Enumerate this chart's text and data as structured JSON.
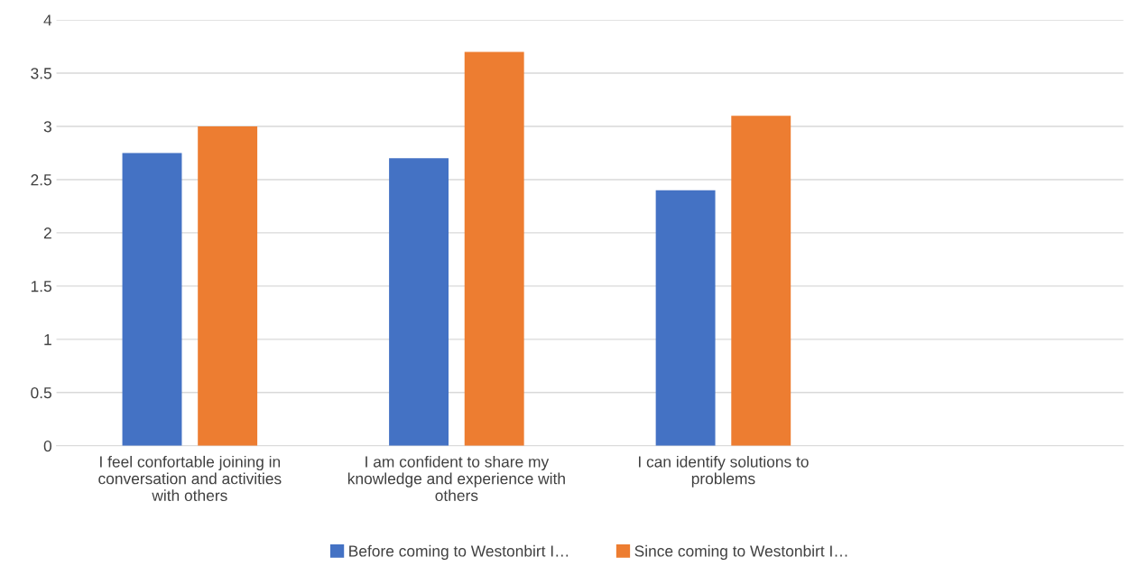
{
  "chart_data": {
    "type": "bar",
    "categories": [
      "I feel confortable joining in conversation and activities with others",
      "I am confident to share my knowledge and experience with others",
      "I can identify solutions to problems",
      null
    ],
    "series": [
      {
        "name": "Before coming to Westonbirt I…",
        "color": "#4472c4",
        "values": [
          2.75,
          2.7,
          2.4,
          null
        ]
      },
      {
        "name": "Since coming to Westonbirt I…",
        "color": "#ed7d31",
        "values": [
          3.0,
          3.7,
          3.1,
          null
        ]
      }
    ],
    "ylim": [
      0,
      4
    ],
    "yticks": [
      0,
      0.5,
      1,
      1.5,
      2,
      2.5,
      3,
      3.5,
      4
    ],
    "grid": "y",
    "legend": "bottom"
  }
}
